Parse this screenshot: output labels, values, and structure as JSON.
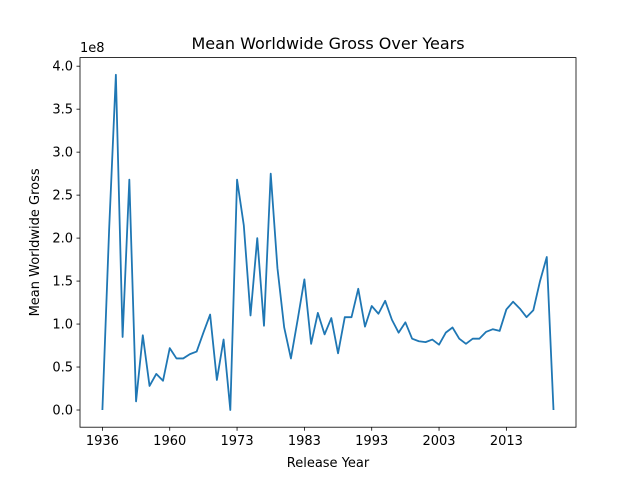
{
  "chart_data": {
    "type": "line",
    "title": "Mean Worldwide Gross Over Years",
    "xlabel": "Release Year",
    "ylabel": "Mean Worldwide Gross",
    "y_offset_label": "1e8",
    "y_scale_factor": 100000000,
    "x_tick_labels": [
      "1936",
      "1960",
      "1973",
      "1983",
      "1993",
      "2003",
      "2013"
    ],
    "y_tick_labels": [
      "0.0",
      "0.5",
      "1.0",
      "1.5",
      "2.0",
      "2.5",
      "3.0",
      "3.5",
      "4.0"
    ],
    "y_ticks": [
      0,
      0.5,
      1.0,
      1.5,
      2.0,
      2.5,
      3.0,
      3.5,
      4.0
    ],
    "ylim": [
      -0.2,
      4.1
    ],
    "line_color": "#1f77b4",
    "grid": false,
    "series": [
      {
        "values": [
          0.0,
          2.1,
          3.9,
          0.85,
          2.68,
          0.1,
          0.87,
          0.28,
          0.42,
          0.34,
          0.72,
          0.6,
          0.6,
          0.65,
          0.68,
          0.9,
          1.11,
          0.35,
          0.82,
          0.0,
          2.68,
          2.15,
          1.1,
          2.0,
          0.98,
          2.75,
          1.65,
          0.96,
          0.6,
          1.05,
          1.52,
          0.77,
          1.13,
          0.88,
          1.07,
          0.66,
          1.08,
          1.08,
          1.41,
          0.97,
          1.21,
          1.12,
          1.27,
          1.05,
          0.9,
          1.02,
          0.83,
          0.8,
          0.79,
          0.82,
          0.76,
          0.9,
          0.96,
          0.83,
          0.77,
          0.83,
          0.83,
          0.91,
          0.94,
          0.92,
          1.17,
          1.26,
          1.18,
          1.08,
          1.16,
          1.5,
          1.78,
          0.0
        ]
      }
    ]
  }
}
